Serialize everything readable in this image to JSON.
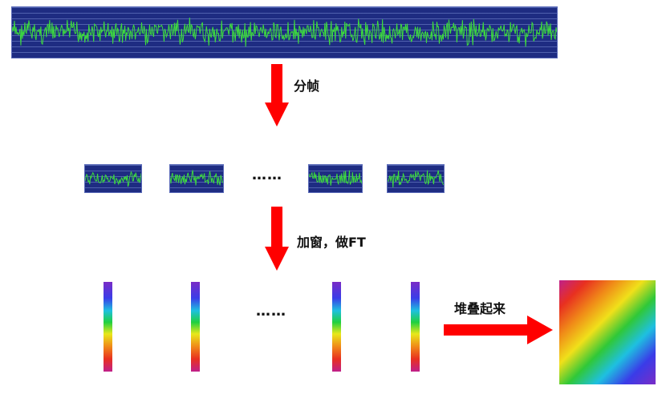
{
  "steps": {
    "framing": "分帧",
    "window_ft": "加窗，做FT",
    "stack": "堆叠起来"
  },
  "ellipsis_frames": "……",
  "ellipsis_spectra": "……",
  "colors": {
    "wave_background": "#1e2c82",
    "wave_trace": "#3ddc3d",
    "arrow": "#ff0000"
  }
}
